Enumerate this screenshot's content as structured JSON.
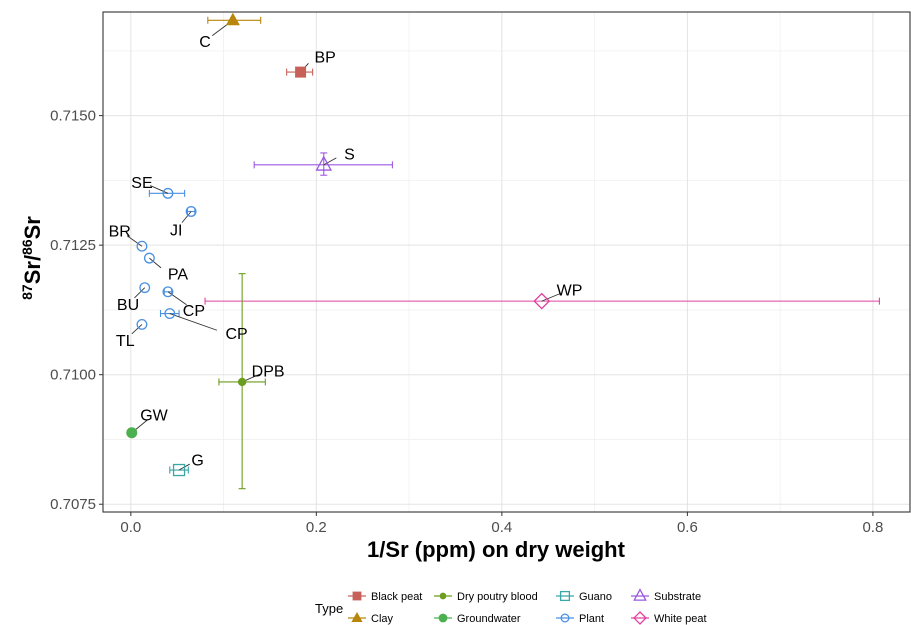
{
  "chart_data": {
    "type": "scatter",
    "xlabel": "1/Sr (ppm) on dry weight",
    "ylabel_parts": {
      "sup1": "87",
      "mid": "Sr/",
      "sup2": "86",
      "end": "Sr"
    },
    "xlim": [
      -0.03,
      0.84
    ],
    "ylim": [
      0.70735,
      0.717
    ],
    "x_ticks": [
      0.0,
      0.2,
      0.4,
      0.6,
      0.8
    ],
    "x_tick_labels": [
      "0.0",
      "0.2",
      "0.4",
      "0.6",
      "0.8"
    ],
    "y_ticks": [
      0.7075,
      0.71,
      0.7125,
      0.715
    ],
    "y_tick_labels": [
      "0.7075",
      "0.7100",
      "0.7125",
      "0.7150"
    ],
    "grid": true,
    "legend_title": "Type",
    "legend_position": "bottom",
    "legend": [
      {
        "name": "Black peat",
        "color": "#c8605a",
        "shape": "square"
      },
      {
        "name": "Clay",
        "color": "#b8860b",
        "shape": "triangle"
      },
      {
        "name": "Dry poutry blood",
        "color": "#6b9e1f",
        "shape": "dot"
      },
      {
        "name": "Groundwater",
        "color": "#4caf50",
        "shape": "circle"
      },
      {
        "name": "Guano",
        "color": "#3aa6a6",
        "shape": "open-square"
      },
      {
        "name": "Plant",
        "color": "#4a90e2",
        "shape": "open-circle"
      },
      {
        "name": "Substrate",
        "color": "#9b59e0",
        "shape": "open-triangle"
      },
      {
        "name": "White peat",
        "color": "#e040a0",
        "shape": "open-diamond"
      }
    ],
    "points": [
      {
        "label": "C",
        "type": "Clay",
        "x": 0.11,
        "y": 0.71684,
        "xerr": [
          0.083,
          0.14
        ],
        "label_dx": -0.03,
        "label_dy": -0.0004,
        "label_anchor": "middle"
      },
      {
        "label": "BP",
        "type": "Black peat",
        "x": 0.183,
        "y": 0.71584,
        "xerr": [
          0.168,
          0.196
        ],
        "label_dx": 0.015,
        "label_dy": 0.0003,
        "label_anchor": "start"
      },
      {
        "label": "S",
        "type": "Substrate",
        "x": 0.208,
        "y": 0.71405,
        "xerr": [
          0.133,
          0.282
        ],
        "yerr": [
          0.71385,
          0.71428
        ],
        "label_dx": 0.022,
        "label_dy": 0.00022,
        "label_anchor": "start"
      },
      {
        "label": "SE",
        "type": "Plant",
        "x": 0.04,
        "y": 0.7135,
        "xerr": [
          0.02,
          0.058
        ],
        "label_dx": -0.028,
        "label_dy": 0.00022,
        "label_anchor": "middle"
      },
      {
        "label": "JI",
        "type": "Plant",
        "x": 0.065,
        "y": 0.71315,
        "xerr": [
          0.061,
          0.069
        ],
        "label_dx": -0.016,
        "label_dy": -0.00035,
        "label_anchor": "middle"
      },
      {
        "label": "BR",
        "type": "Plant",
        "x": 0.012,
        "y": 0.71248,
        "label_dx": -0.024,
        "label_dy": 0.0003,
        "label_anchor": "middle"
      },
      {
        "label": "PA",
        "type": "Plant",
        "x": 0.02,
        "y": 0.71225,
        "label_dx": 0.02,
        "label_dy": -0.0003,
        "label_anchor": "start"
      },
      {
        "label": "BU",
        "type": "Plant",
        "x": 0.015,
        "y": 0.71168,
        "label_dx": -0.018,
        "label_dy": -0.00032,
        "label_anchor": "middle"
      },
      {
        "label": "CP",
        "type": "Plant",
        "x": 0.04,
        "y": 0.7116,
        "xerr": [
          0.036,
          0.044
        ],
        "label_dx": 0.028,
        "label_dy": -0.00035,
        "label_anchor": "middle"
      },
      {
        "label": "CP",
        "type": "Plant",
        "x": 0.042,
        "y": 0.71118,
        "xerr": [
          0.032,
          0.052
        ],
        "label_dx": 0.06,
        "label_dy": -0.00038,
        "label_anchor": "start"
      },
      {
        "label": "TL",
        "type": "Plant",
        "x": 0.012,
        "y": 0.71097,
        "label_dx": -0.018,
        "label_dy": -0.0003,
        "label_anchor": "middle"
      },
      {
        "label": "WP",
        "type": "White peat",
        "x": 0.443,
        "y": 0.71142,
        "xerr": [
          0.08,
          0.807
        ],
        "label_dx": 0.03,
        "label_dy": 0.00022,
        "label_anchor": "middle"
      },
      {
        "label": "DPB",
        "type": "Dry poutry blood",
        "x": 0.12,
        "y": 0.70986,
        "xerr": [
          0.095,
          0.145
        ],
        "yerr": [
          0.7078,
          0.71195
        ],
        "label_dx": 0.028,
        "label_dy": 0.00022,
        "label_anchor": "middle"
      },
      {
        "label": "GW",
        "type": "Groundwater",
        "x": 0.001,
        "y": 0.70888,
        "label_dx": 0.024,
        "label_dy": 0.00035,
        "label_anchor": "middle"
      },
      {
        "label": "G",
        "type": "Guano",
        "x": 0.052,
        "y": 0.70816,
        "xerr": [
          0.042,
          0.062
        ],
        "label_dx": 0.02,
        "label_dy": 0.0002,
        "label_anchor": "middle"
      }
    ]
  }
}
